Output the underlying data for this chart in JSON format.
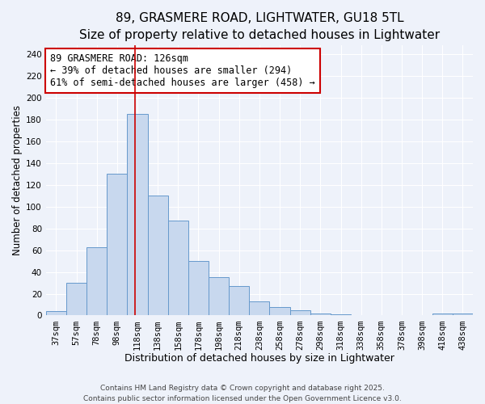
{
  "title": "89, GRASMERE ROAD, LIGHTWATER, GU18 5TL",
  "subtitle": "Size of property relative to detached houses in Lightwater",
  "xlabel": "Distribution of detached houses by size in Lightwater",
  "ylabel": "Number of detached properties",
  "bar_labels": [
    "37sqm",
    "57sqm",
    "78sqm",
    "98sqm",
    "118sqm",
    "138sqm",
    "158sqm",
    "178sqm",
    "198sqm",
    "218sqm",
    "238sqm",
    "258sqm",
    "278sqm",
    "298sqm",
    "318sqm",
    "338sqm",
    "358sqm",
    "378sqm",
    "398sqm",
    "418sqm",
    "438sqm"
  ],
  "bar_values": [
    4,
    30,
    63,
    130,
    185,
    110,
    87,
    50,
    35,
    27,
    13,
    8,
    5,
    2,
    1,
    0,
    0,
    0,
    0,
    2,
    2
  ],
  "bar_color": "#c8d8ee",
  "bar_edge_color": "#6699cc",
  "vline_color": "#cc0000",
  "annotation_line1": "89 GRASMERE ROAD: 126sqm",
  "annotation_line2": "← 39% of detached houses are smaller (294)",
  "annotation_line3": "61% of semi-detached houses are larger (458) →",
  "annotation_box_color": "white",
  "annotation_box_edge": "#cc0000",
  "ylim": [
    0,
    248
  ],
  "yticks": [
    0,
    20,
    40,
    60,
    80,
    100,
    120,
    140,
    160,
    180,
    200,
    220,
    240
  ],
  "background_color": "#eef2fa",
  "grid_color": "#ffffff",
  "footer_line1": "Contains HM Land Registry data © Crown copyright and database right 2025.",
  "footer_line2": "Contains public sector information licensed under the Open Government Licence v3.0.",
  "title_fontsize": 11,
  "subtitle_fontsize": 9.5,
  "xlabel_fontsize": 9,
  "ylabel_fontsize": 8.5,
  "tick_fontsize": 7.5,
  "annotation_fontsize": 8.5,
  "footer_fontsize": 6.5
}
